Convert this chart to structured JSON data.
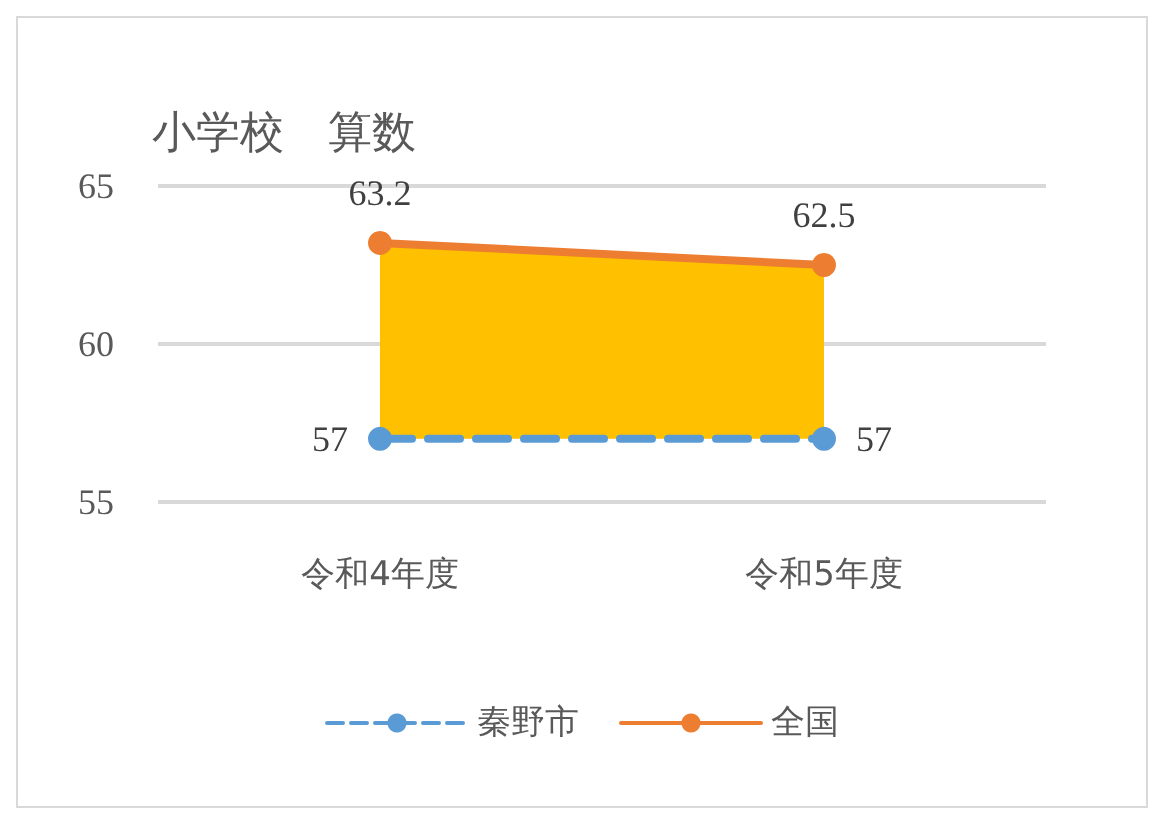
{
  "chart_data": {
    "type": "line",
    "title": "小学校　算数",
    "categories": [
      "令和4年度",
      "令和5年度"
    ],
    "series": [
      {
        "name": "秦野市",
        "color": "#5b9bd5",
        "values": [
          57,
          57
        ],
        "line_style": "dashed"
      },
      {
        "name": "全国",
        "color": "#ed7d31",
        "values": [
          63.2,
          62.5
        ],
        "line_style": "solid",
        "lower": [
          57,
          57
        ],
        "upper": [
          63.2,
          62.5
        ]
      }
    ],
    "ylim": [
      55,
      65
    ],
    "yticks": [
      55,
      60,
      65
    ],
    "grid": "y",
    "legend": "bottom",
    "marker": "circle",
    "data_labels": true
  }
}
